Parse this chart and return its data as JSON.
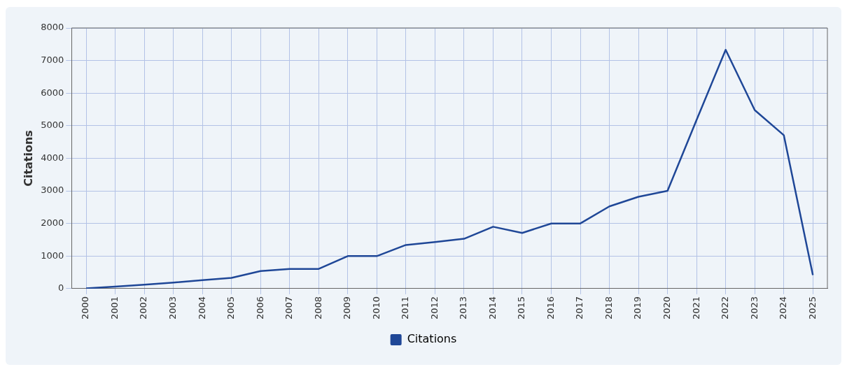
{
  "chart_data": {
    "type": "line",
    "ylabel": "Citations",
    "categories": [
      "2000",
      "2001",
      "2002",
      "2003",
      "2004",
      "2005",
      "2006",
      "2007",
      "2008",
      "2009",
      "2010",
      "2011",
      "2012",
      "2013",
      "2014",
      "2015",
      "2016",
      "2017",
      "2018",
      "2019",
      "2020",
      "2021",
      "2022",
      "2023",
      "2024",
      "2025"
    ],
    "series": [
      {
        "name": "Citations",
        "color": "#1f4797",
        "values": [
          10,
          60,
          120,
          185,
          260,
          330,
          540,
          605,
          605,
          1000,
          1000,
          1340,
          1430,
          1530,
          1900,
          1710,
          2000,
          2000,
          2525,
          2820,
          3000,
          5180,
          7330,
          5480,
          4710,
          415
        ]
      }
    ],
    "ylim": [
      0,
      8000
    ],
    "yticks": [
      0,
      1000,
      2000,
      3000,
      4000,
      5000,
      6000,
      7000,
      8000
    ],
    "grid": true,
    "legend": "bottom",
    "marker": "none",
    "line_style": "solid"
  }
}
